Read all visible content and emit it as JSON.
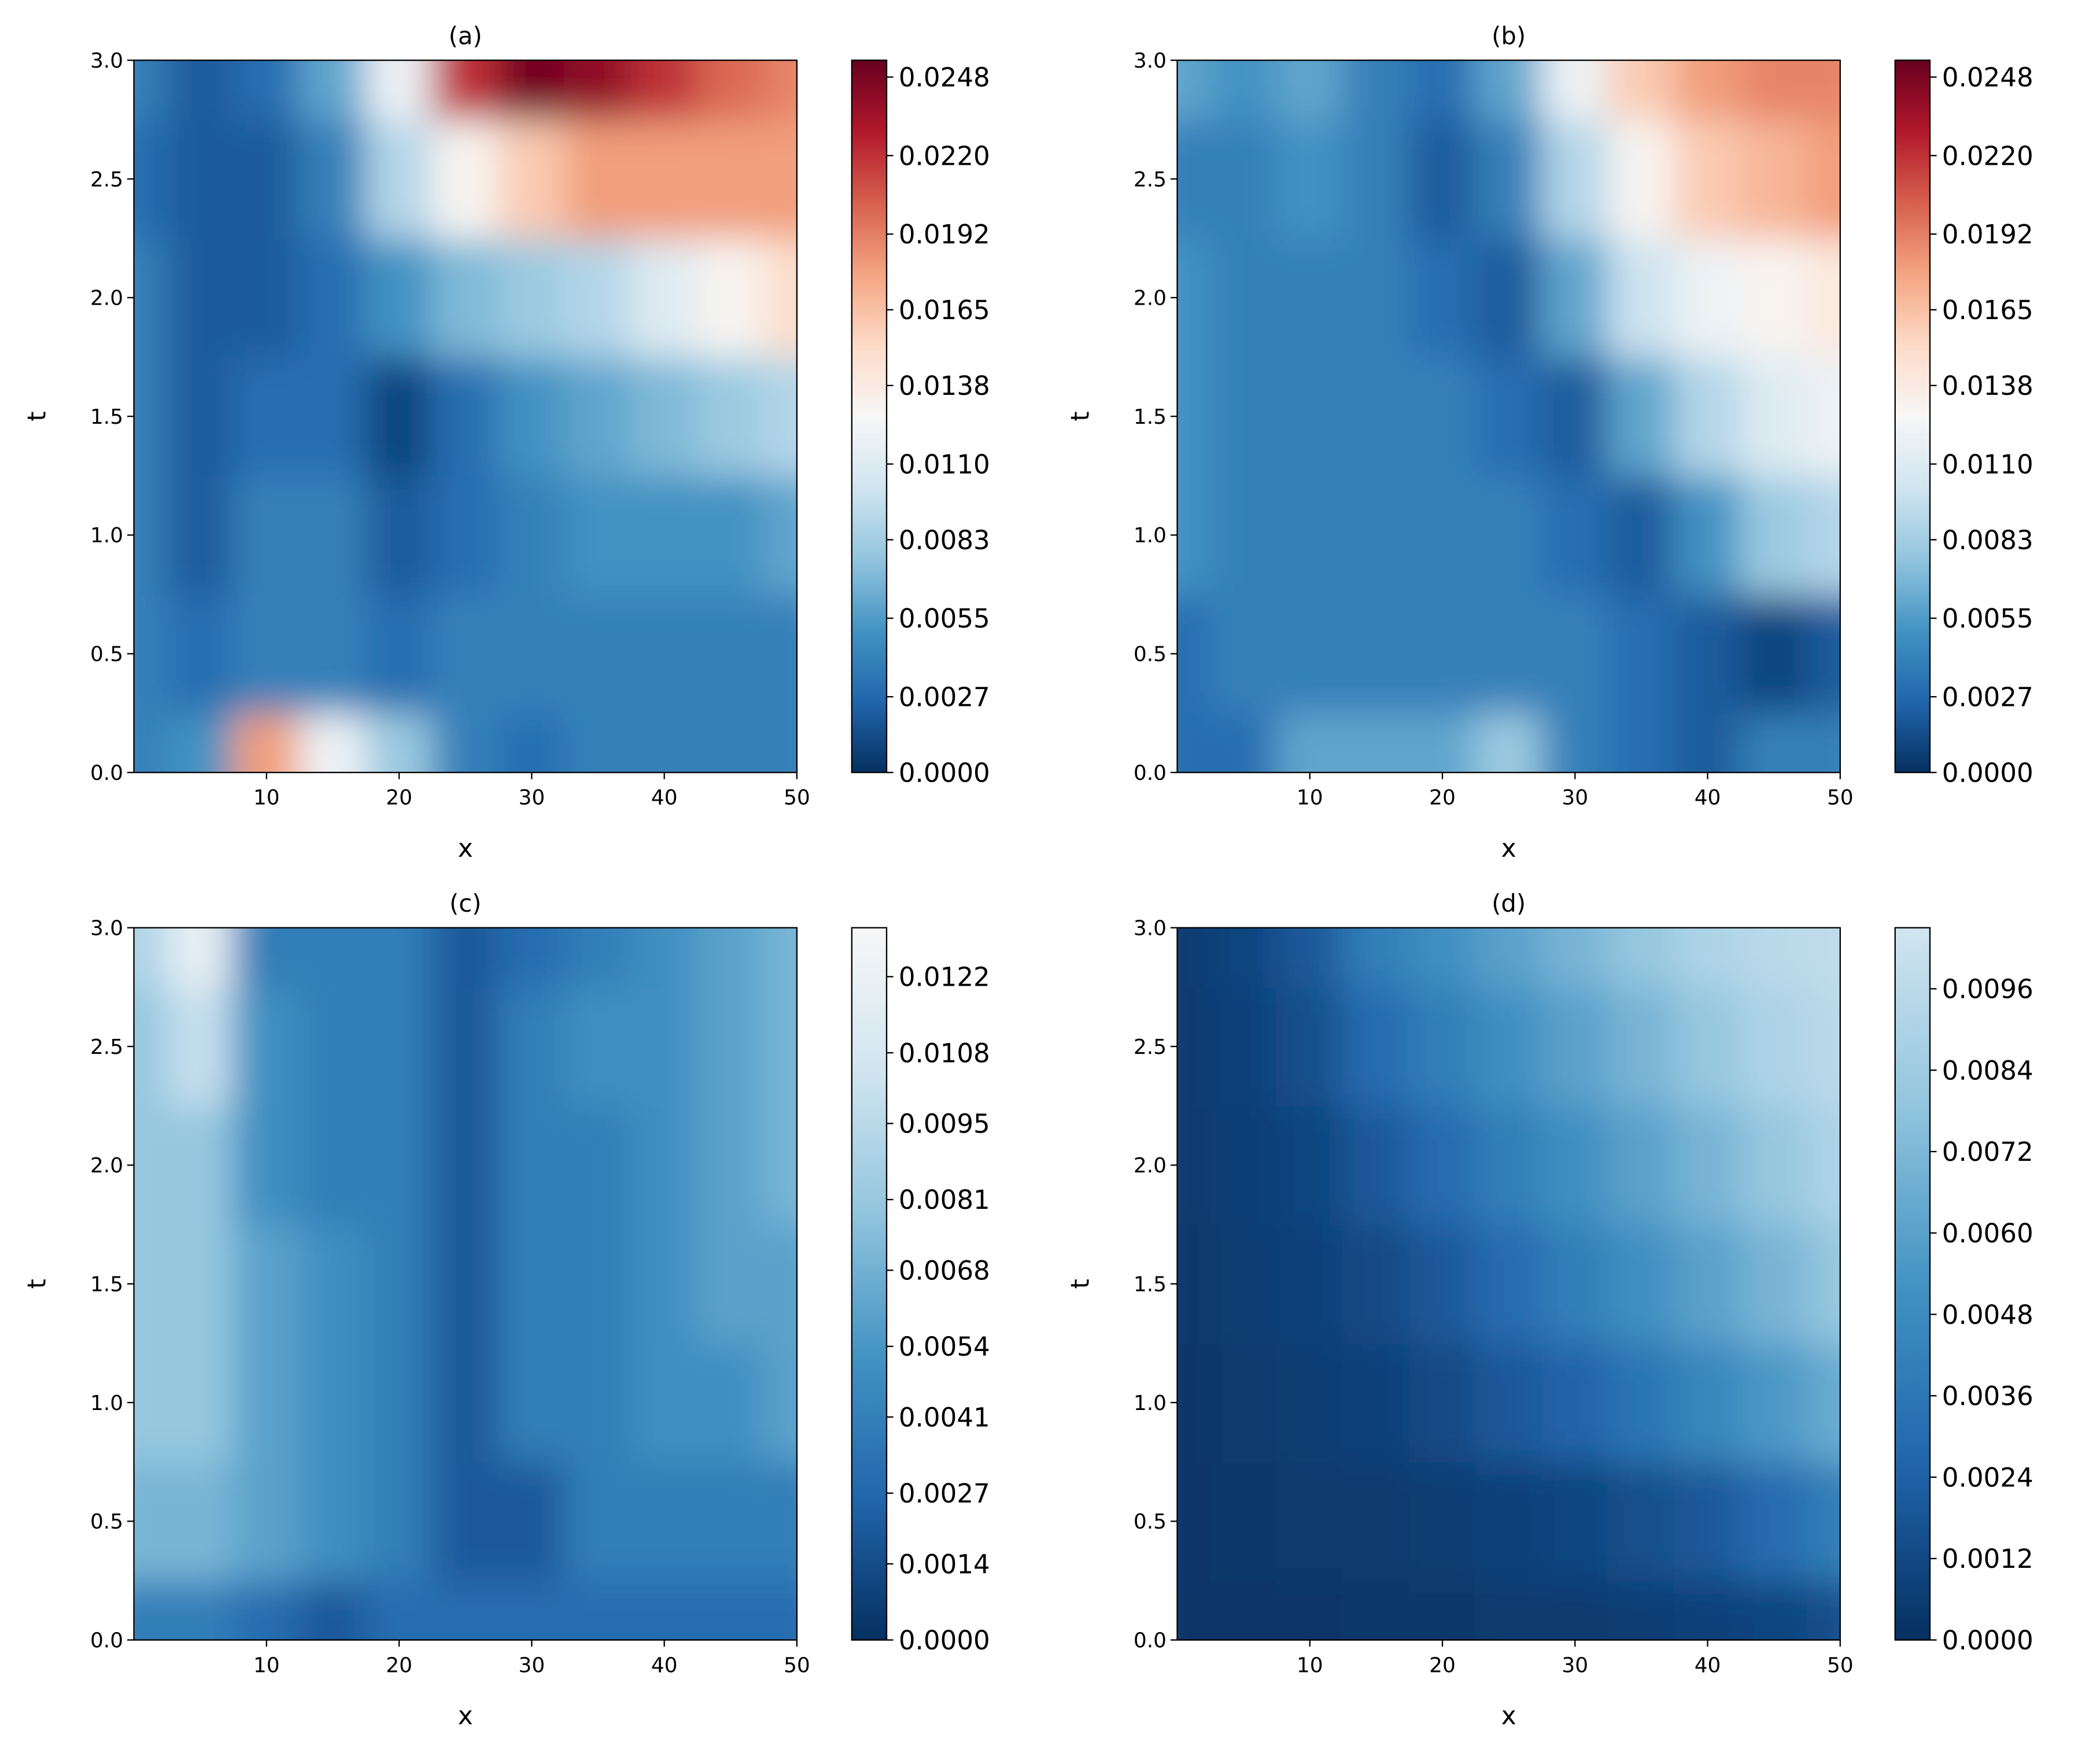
{
  "chart_data": [
    {
      "type": "heatmap",
      "title": "(a)",
      "x_label": "x",
      "y_label": "t",
      "x": [
        0,
        5,
        10,
        15,
        20,
        25,
        30,
        35,
        40,
        45,
        50
      ],
      "y": [
        0,
        0.5,
        1,
        1.5,
        2,
        2.5,
        3
      ],
      "z": [
        [
          0.004,
          0.005,
          0.018,
          0.012,
          0.008,
          0.004,
          0.003,
          0.004,
          0.004,
          0.004,
          0.004
        ],
        [
          0.004,
          0.003,
          0.004,
          0.004,
          0.003,
          0.004,
          0.004,
          0.004,
          0.004,
          0.004,
          0.004
        ],
        [
          0.004,
          0.002,
          0.004,
          0.004,
          0.002,
          0.003,
          0.004,
          0.005,
          0.005,
          0.005,
          0.006
        ],
        [
          0.004,
          0.002,
          0.003,
          0.003,
          0.001,
          0.003,
          0.005,
          0.006,
          0.007,
          0.008,
          0.009
        ],
        [
          0.004,
          0.002,
          0.002,
          0.003,
          0.005,
          0.007,
          0.008,
          0.009,
          0.011,
          0.013,
          0.015
        ],
        [
          0.003,
          0.002,
          0.002,
          0.004,
          0.009,
          0.013,
          0.016,
          0.018,
          0.018,
          0.018,
          0.018
        ],
        [
          0.004,
          0.002,
          0.003,
          0.006,
          0.012,
          0.022,
          0.025,
          0.024,
          0.022,
          0.02,
          0.019
        ]
      ],
      "xlim": [
        0,
        50
      ],
      "xticks": [
        10,
        20,
        30,
        40,
        50
      ],
      "ylim": [
        0,
        3
      ],
      "yticks": [
        {
          "value": 0,
          "label": "0.0"
        },
        0.5,
        {
          "value": 1,
          "label": "1.0"
        },
        1.5,
        {
          "value": 2,
          "label": "2.0"
        },
        2.5,
        {
          "value": 3,
          "label": "3.0"
        }
      ],
      "zlim": [
        0,
        0.0254
      ],
      "zticks": [
        {
          "value": 0,
          "label": "0.0000"
        },
        {
          "value": 0.0027,
          "label": "0.0027"
        },
        {
          "value": 0.0055,
          "label": "0.0055"
        },
        {
          "value": 0.0083,
          "label": "0.0083"
        },
        {
          "value": 0.011,
          "label": "0.0110"
        },
        {
          "value": 0.0138,
          "label": "0.0138"
        },
        {
          "value": 0.0165,
          "label": "0.0165"
        },
        {
          "value": 0.0192,
          "label": "0.0192"
        },
        {
          "value": 0.022,
          "label": "0.0220"
        },
        {
          "value": 0.0248,
          "label": "0.0248"
        }
      ],
      "colors": [
        "#053061",
        "#2166ac",
        "#4393c3",
        "#92c5de",
        "#d1e5f0",
        "#f7f7f7",
        "#fddbc7",
        "#f4a582",
        "#d6604d",
        "#b2182b",
        "#67001f"
      ]
    },
    {
      "type": "heatmap",
      "title": "(b)",
      "x_label": "x",
      "y_label": "t",
      "x": [
        0,
        5,
        10,
        15,
        20,
        25,
        30,
        35,
        40,
        45,
        50
      ],
      "y": [
        0,
        0.5,
        1,
        1.5,
        2,
        2.5,
        3
      ],
      "z": [
        [
          0.003,
          0.003,
          0.006,
          0.006,
          0.006,
          0.008,
          0.004,
          0.003,
          0.002,
          0.004,
          0.004
        ],
        [
          0.003,
          0.004,
          0.004,
          0.004,
          0.004,
          0.004,
          0.004,
          0.003,
          0.002,
          0.001,
          0.002
        ],
        [
          0.005,
          0.004,
          0.004,
          0.004,
          0.004,
          0.004,
          0.003,
          0.002,
          0.005,
          0.008,
          0.009
        ],
        [
          0.005,
          0.004,
          0.004,
          0.004,
          0.004,
          0.003,
          0.002,
          0.006,
          0.009,
          0.011,
          0.012
        ],
        [
          0.005,
          0.004,
          0.004,
          0.004,
          0.003,
          0.002,
          0.006,
          0.01,
          0.012,
          0.013,
          0.014
        ],
        [
          0.004,
          0.004,
          0.005,
          0.004,
          0.002,
          0.004,
          0.009,
          0.013,
          0.016,
          0.017,
          0.018
        ],
        [
          0.006,
          0.005,
          0.006,
          0.004,
          0.003,
          0.006,
          0.012,
          0.016,
          0.018,
          0.019,
          0.019
        ]
      ],
      "xlim": [
        0,
        50
      ],
      "xticks": [
        10,
        20,
        30,
        40,
        50
      ],
      "ylim": [
        0,
        3
      ],
      "yticks": [
        {
          "value": 0,
          "label": "0.0"
        },
        0.5,
        {
          "value": 1,
          "label": "1.0"
        },
        1.5,
        {
          "value": 2,
          "label": "2.0"
        },
        2.5,
        {
          "value": 3,
          "label": "3.0"
        }
      ],
      "zlim": [
        0,
        0.0254
      ],
      "zticks": [
        {
          "value": 0,
          "label": "0.0000"
        },
        {
          "value": 0.0027,
          "label": "0.0027"
        },
        {
          "value": 0.0055,
          "label": "0.0055"
        },
        {
          "value": 0.0083,
          "label": "0.0083"
        },
        {
          "value": 0.011,
          "label": "0.0110"
        },
        {
          "value": 0.0138,
          "label": "0.0138"
        },
        {
          "value": 0.0165,
          "label": "0.0165"
        },
        {
          "value": 0.0192,
          "label": "0.0192"
        },
        {
          "value": 0.022,
          "label": "0.0220"
        },
        {
          "value": 0.0248,
          "label": "0.0248"
        }
      ],
      "colors": [
        "#053061",
        "#2166ac",
        "#4393c3",
        "#92c5de",
        "#d1e5f0",
        "#f7f7f7",
        "#fddbc7",
        "#f4a582",
        "#d6604d",
        "#b2182b",
        "#67001f"
      ]
    },
    {
      "type": "heatmap",
      "title": "(c)",
      "x_label": "x",
      "y_label": "t",
      "x": [
        0,
        5,
        10,
        15,
        20,
        25,
        30,
        35,
        40,
        45,
        50
      ],
      "y": [
        0,
        0.5,
        1,
        1.5,
        2,
        2.5,
        3
      ],
      "z": [
        [
          0.004,
          0.004,
          0.003,
          0.002,
          0.003,
          0.003,
          0.003,
          0.003,
          0.003,
          0.003,
          0.003
        ],
        [
          0.007,
          0.007,
          0.006,
          0.005,
          0.004,
          0.002,
          0.002,
          0.004,
          0.004,
          0.004,
          0.004
        ],
        [
          0.008,
          0.008,
          0.006,
          0.005,
          0.004,
          0.002,
          0.004,
          0.004,
          0.005,
          0.005,
          0.006
        ],
        [
          0.008,
          0.008,
          0.006,
          0.005,
          0.004,
          0.002,
          0.004,
          0.004,
          0.005,
          0.006,
          0.006
        ],
        [
          0.008,
          0.008,
          0.005,
          0.004,
          0.004,
          0.002,
          0.004,
          0.004,
          0.005,
          0.006,
          0.007
        ],
        [
          0.008,
          0.01,
          0.005,
          0.004,
          0.004,
          0.002,
          0.004,
          0.005,
          0.005,
          0.006,
          0.007
        ],
        [
          0.009,
          0.012,
          0.004,
          0.004,
          0.004,
          0.002,
          0.003,
          0.004,
          0.005,
          0.006,
          0.007
        ]
      ],
      "xlim": [
        0,
        50
      ],
      "xticks": [
        10,
        20,
        30,
        40,
        50
      ],
      "ylim": [
        0,
        3
      ],
      "yticks": [
        {
          "value": 0,
          "label": "0.0"
        },
        0.5,
        {
          "value": 1,
          "label": "1.0"
        },
        1.5,
        {
          "value": 2,
          "label": "2.0"
        },
        2.5,
        {
          "value": 3,
          "label": "3.0"
        }
      ],
      "zlim": [
        0,
        0.0131
      ],
      "zticks": [
        {
          "value": 0,
          "label": "0.0000"
        },
        {
          "value": 0.0014,
          "label": "0.0014"
        },
        {
          "value": 0.0027,
          "label": "0.0027"
        },
        {
          "value": 0.0041,
          "label": "0.0041"
        },
        {
          "value": 0.0054,
          "label": "0.0054"
        },
        {
          "value": 0.0068,
          "label": "0.0068"
        },
        {
          "value": 0.0081,
          "label": "0.0081"
        },
        {
          "value": 0.0095,
          "label": "0.0095"
        },
        {
          "value": 0.0108,
          "label": "0.0108"
        },
        {
          "value": 0.0122,
          "label": "0.0122"
        }
      ],
      "colors": [
        "#053061",
        "#2166ac",
        "#4393c3",
        "#92c5de",
        "#d1e5f0",
        "#f7f7f7"
      ]
    },
    {
      "type": "heatmap",
      "title": "(d)",
      "x_label": "x",
      "y_label": "t",
      "x": [
        0,
        5,
        10,
        15,
        20,
        25,
        30,
        35,
        40,
        45,
        50
      ],
      "y": [
        0,
        0.5,
        1,
        1.5,
        2,
        2.5,
        3
      ],
      "z": [
        [
          0.0002,
          0.0003,
          0.0003,
          0.0004,
          0.0004,
          0.0005,
          0.0005,
          0.0006,
          0.0008,
          0.001,
          0.0015
        ],
        [
          0.0003,
          0.0004,
          0.0005,
          0.0005,
          0.0006,
          0.0008,
          0.001,
          0.0015,
          0.002,
          0.003,
          0.004
        ],
        [
          0.0003,
          0.0005,
          0.0006,
          0.0008,
          0.0012,
          0.002,
          0.0025,
          0.0035,
          0.0045,
          0.0055,
          0.0065
        ],
        [
          0.0004,
          0.0006,
          0.0008,
          0.0012,
          0.002,
          0.003,
          0.004,
          0.005,
          0.006,
          0.007,
          0.008
        ],
        [
          0.0005,
          0.0007,
          0.001,
          0.002,
          0.003,
          0.004,
          0.005,
          0.006,
          0.007,
          0.008,
          0.009
        ],
        [
          0.0005,
          0.0008,
          0.0015,
          0.003,
          0.004,
          0.005,
          0.006,
          0.007,
          0.008,
          0.009,
          0.0095
        ],
        [
          0.0005,
          0.001,
          0.002,
          0.004,
          0.005,
          0.006,
          0.007,
          0.008,
          0.009,
          0.0095,
          0.0098
        ]
      ],
      "xlim": [
        0,
        50
      ],
      "xticks": [
        10,
        20,
        30,
        40,
        50
      ],
      "ylim": [
        0,
        3
      ],
      "yticks": [
        {
          "value": 0,
          "label": "0.0"
        },
        0.5,
        {
          "value": 1,
          "label": "1.0"
        },
        1.5,
        {
          "value": 2,
          "label": "2.0"
        },
        2.5,
        {
          "value": 3,
          "label": "3.0"
        }
      ],
      "zlim": [
        0,
        0.0105
      ],
      "zticks": [
        {
          "value": 0,
          "label": "0.0000"
        },
        {
          "value": 0.0012,
          "label": "0.0012"
        },
        {
          "value": 0.0024,
          "label": "0.0024"
        },
        {
          "value": 0.0036,
          "label": "0.0036"
        },
        {
          "value": 0.0048,
          "label": "0.0048"
        },
        {
          "value": 0.006,
          "label": "0.0060"
        },
        {
          "value": 0.0072,
          "label": "0.0072"
        },
        {
          "value": 0.0084,
          "label": "0.0084"
        },
        {
          "value": 0.0096,
          "label": "0.0096"
        }
      ],
      "colors": [
        "#053061",
        "#2166ac",
        "#4393c3",
        "#92c5de",
        "#d1e5f0"
      ]
    }
  ]
}
